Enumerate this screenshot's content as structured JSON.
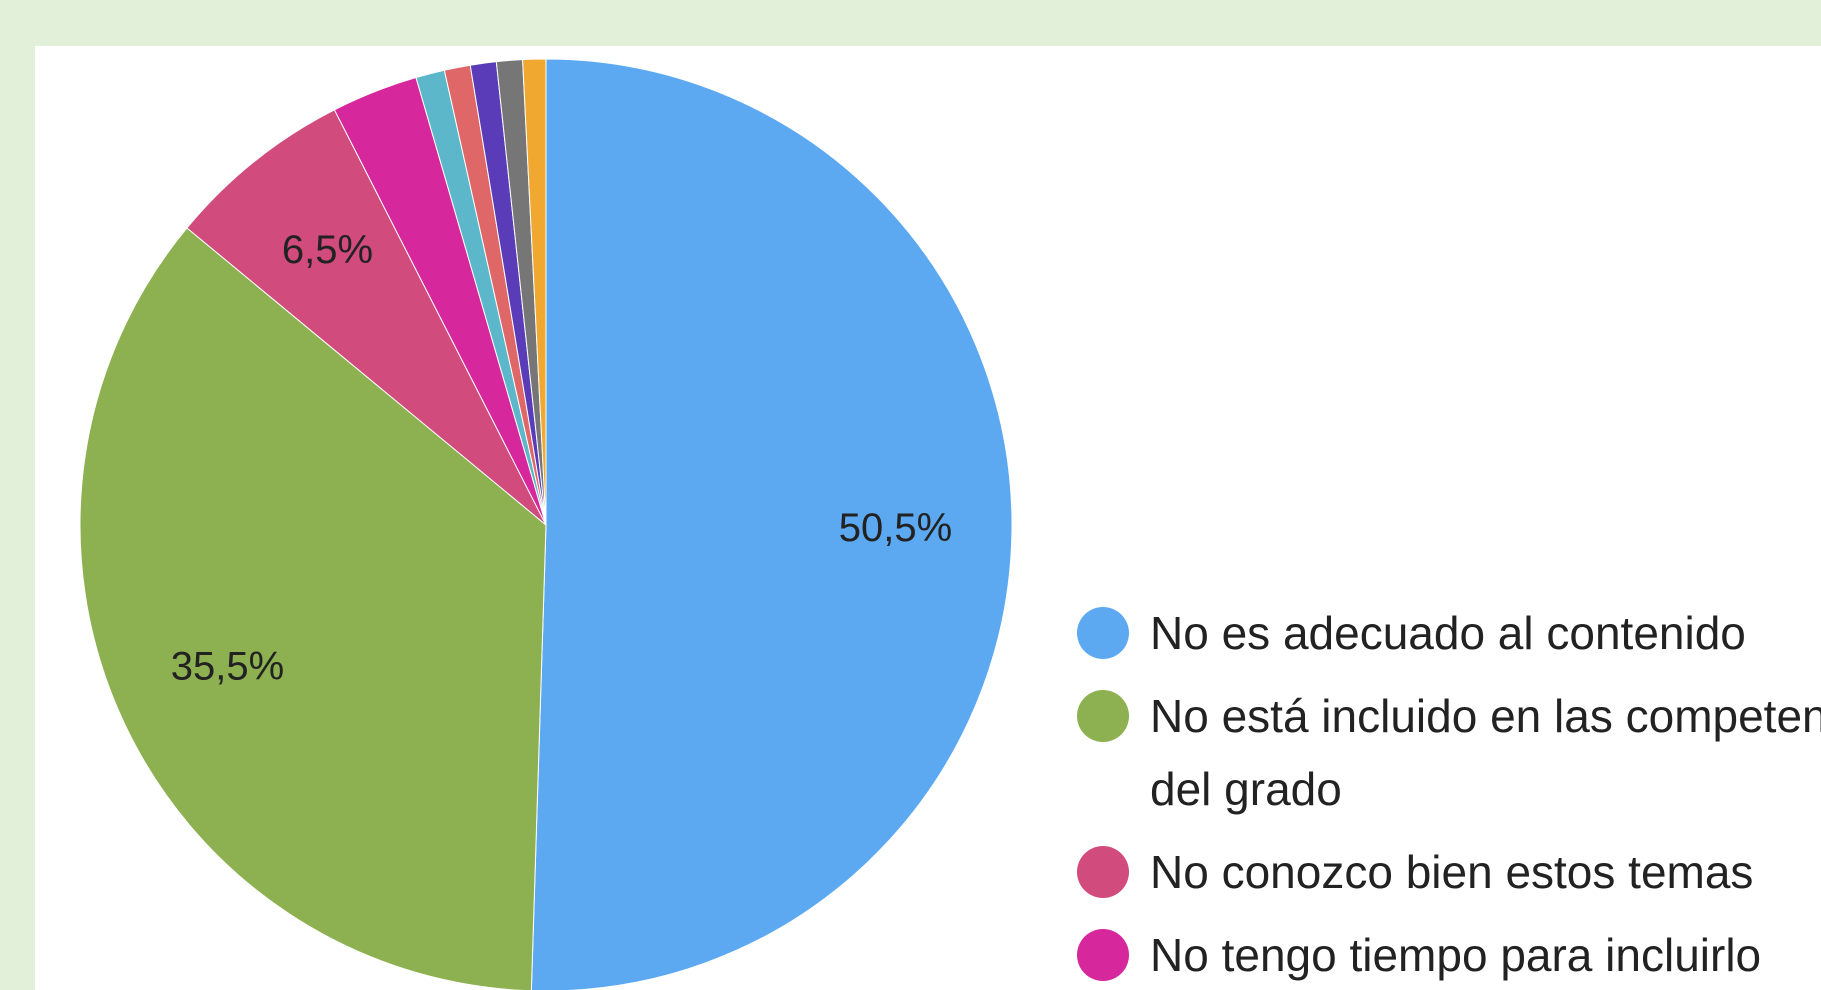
{
  "chart_data": {
    "type": "pie",
    "categories": [
      "No es adecuado al contenido",
      "No está incluido en las competencias del grado",
      "No conozco bien estos temas",
      "No tengo tiempo para incluirlo",
      null,
      null,
      null,
      null,
      null
    ],
    "values": [
      50.5,
      35.5,
      6.5,
      3.0,
      1.0,
      0.9,
      0.9,
      0.9,
      0.8
    ],
    "value_labels": [
      "50,5%",
      "35,5%",
      "6,5%",
      null,
      null,
      null,
      null,
      null,
      null
    ],
    "colors": [
      "#5ca9f2",
      "#8db150",
      "#d14b7c",
      "#d6289c",
      "#5bb7c9",
      "#e06767",
      "#5b3cb8",
      "#767676",
      "#f0a830"
    ]
  }
}
